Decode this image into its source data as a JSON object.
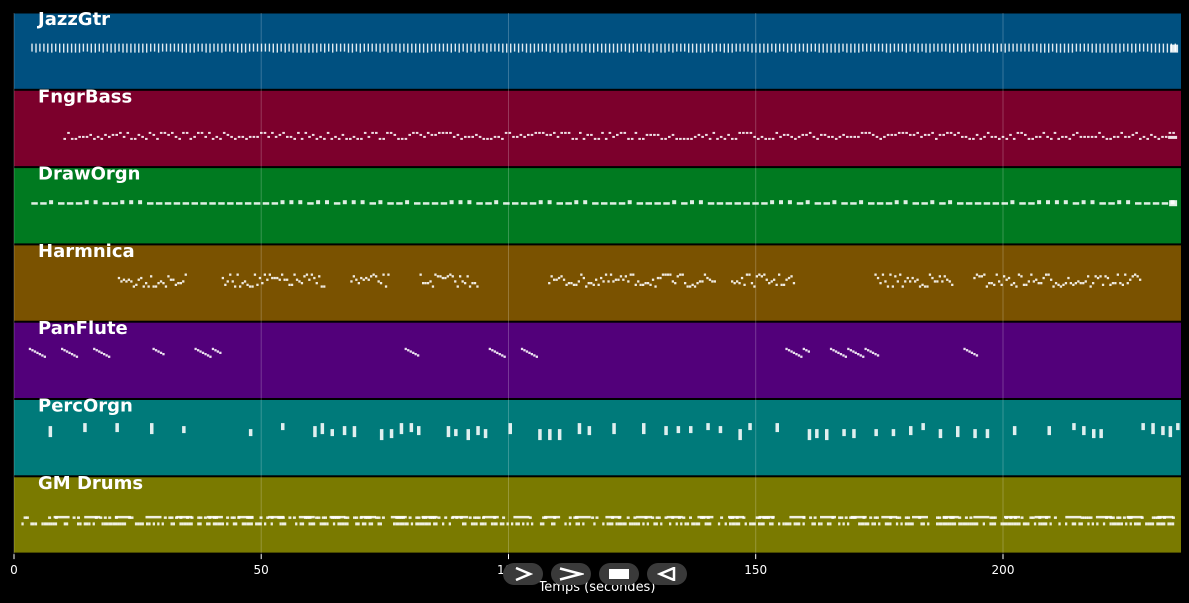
{
  "chart_data": {
    "type": "piano-roll",
    "xlabel": "Temps (secondes)",
    "xlim": [
      0,
      236
    ],
    "xticks": [
      0,
      50,
      100,
      150,
      200
    ],
    "grid": true,
    "tracks": [
      {
        "name": "JazzGtr",
        "color": "#005080",
        "pattern": "continuous",
        "start": 3.5,
        "end": 235
      },
      {
        "name": "FngrBass",
        "color": "#7c002c",
        "pattern": "continuous",
        "start": 10,
        "end": 235
      },
      {
        "name": "DrawOrgn",
        "color": "#007a20",
        "pattern": "continuous",
        "start": 3.5,
        "end": 235
      },
      {
        "name": "Harmnica",
        "color": "#7a5200",
        "pattern": "phrases",
        "phrases": [
          [
            21,
            35
          ],
          [
            42,
            63
          ],
          [
            68,
            76
          ],
          [
            82,
            94
          ],
          [
            108,
            142
          ],
          [
            145,
            158
          ],
          [
            174,
            190
          ],
          [
            194,
            228
          ]
        ]
      },
      {
        "name": "PanFlute",
        "color": "#52007a",
        "pattern": "phrases",
        "phrases": [
          [
            3,
            6.5
          ],
          [
            9.5,
            13
          ],
          [
            16,
            19.5
          ],
          [
            28,
            30.5
          ],
          [
            36.5,
            42
          ],
          [
            79,
            82
          ],
          [
            96,
            99.5
          ],
          [
            102.5,
            106
          ],
          [
            156,
            161
          ],
          [
            165,
            175
          ],
          [
            192,
            195
          ]
        ]
      },
      {
        "name": "PercOrgn",
        "color": "#007a7a",
        "pattern": "sparse",
        "hits": [
          7,
          14,
          20.5,
          27.5,
          34,
          47.5,
          54,
          60.5,
          62,
          64,
          66.5,
          68.5,
          74,
          76,
          78,
          80,
          81.5,
          87.5,
          89,
          91.5,
          93.5,
          95,
          100,
          106,
          108,
          110,
          114,
          116,
          121,
          127,
          131.5,
          134,
          136.5,
          140,
          142.5,
          146.5,
          148.5,
          154,
          160.5,
          162,
          164,
          167.5,
          169.5,
          174,
          177.5,
          181,
          183.5,
          187,
          190.5,
          194,
          196.5,
          202,
          209,
          214,
          216,
          218,
          219.5,
          228,
          230,
          232,
          233.5,
          235
        ]
      },
      {
        "name": "GM Drums",
        "color": "#7a7a00",
        "pattern": "drums",
        "start": 1.5,
        "end": 235
      }
    ]
  },
  "controls": [
    {
      "name": "play-button",
      "icon": "play-icon"
    },
    {
      "name": "forward-button",
      "icon": "forward-icon"
    },
    {
      "name": "stop-button",
      "icon": "stop-icon"
    },
    {
      "name": "rewind-button",
      "icon": "rewind-icon"
    }
  ]
}
